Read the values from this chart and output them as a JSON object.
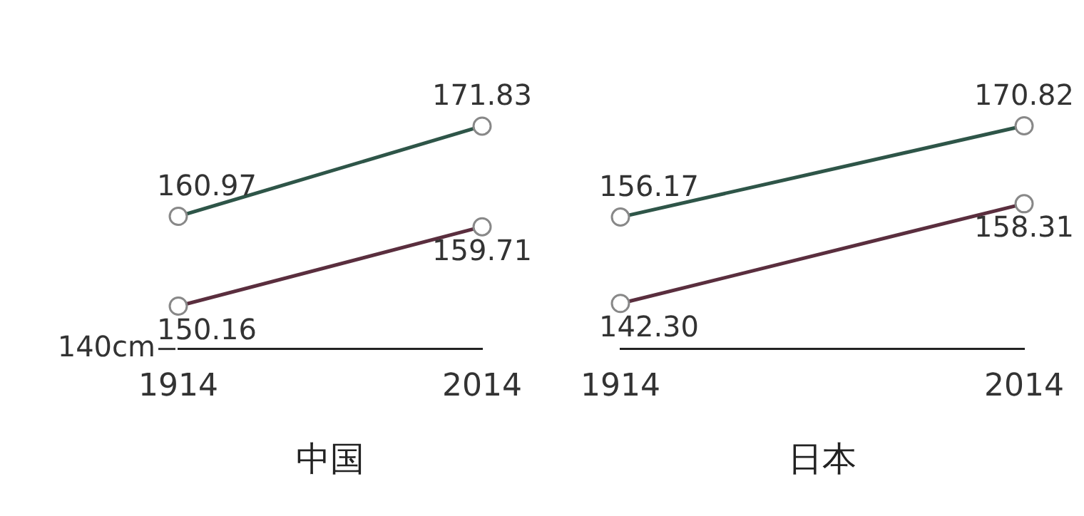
{
  "chart_data": [
    {
      "type": "line",
      "xlabel": "中国",
      "categories": [
        "1914",
        "2014"
      ],
      "annotations": [
        "140cm"
      ],
      "marker": "circle",
      "grid": false,
      "legend": false,
      "series": [
        {
          "color": "#2e5548",
          "values": [
            160.97,
            171.83
          ],
          "value_labels": [
            "160.97",
            "171.83"
          ]
        },
        {
          "color": "#5a2e3e",
          "values": [
            150.16,
            159.71
          ],
          "value_labels": [
            "150.16",
            "159.71"
          ]
        }
      ]
    },
    {
      "type": "line",
      "xlabel": "日本",
      "categories": [
        "1914",
        "2014"
      ],
      "marker": "circle",
      "grid": false,
      "legend": false,
      "series": [
        {
          "color": "#2e5548",
          "values": [
            156.17,
            170.82
          ],
          "value_labels": [
            "156.17",
            "170.82"
          ]
        },
        {
          "color": "#5a2e3e",
          "values": [
            142.3,
            158.31
          ],
          "value_labels": [
            "142.30",
            "158.31"
          ]
        }
      ]
    }
  ]
}
